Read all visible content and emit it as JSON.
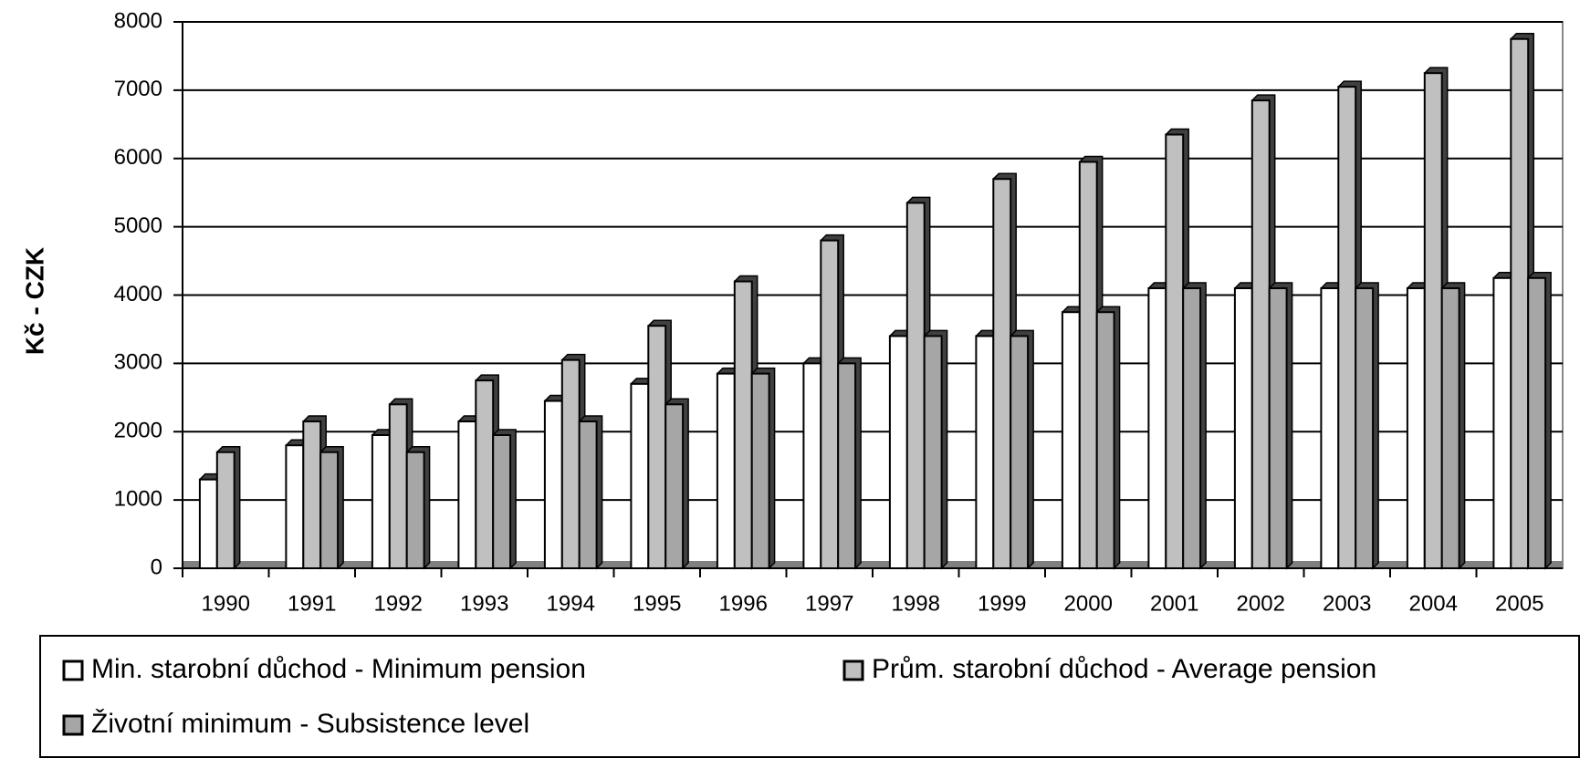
{
  "chart_data": {
    "type": "bar",
    "y_label": "Kč - CZK",
    "categories": [
      "1990",
      "1991",
      "1992",
      "1993",
      "1994",
      "1995",
      "1996",
      "1997",
      "1998",
      "1999",
      "2000",
      "2001",
      "2002",
      "2003",
      "2004",
      "2005"
    ],
    "series": [
      {
        "name": "Min. starobní důchod - Minimum pension",
        "color": "#ffffff",
        "values": [
          1300,
          1800,
          1950,
          2150,
          2450,
          2700,
          2850,
          3000,
          3400,
          3400,
          3750,
          4100,
          4100,
          4100,
          4100,
          4250
        ]
      },
      {
        "name": "Prům. starobní důchod - Average pension",
        "color": "#c0c0c0",
        "values": [
          1700,
          2150,
          2400,
          2750,
          3050,
          3550,
          4200,
          4800,
          5350,
          5700,
          5950,
          6350,
          6850,
          7050,
          7250,
          7750
        ]
      },
      {
        "name": "Životní minimum - Subsistence level",
        "color": "#a6a6a6",
        "values": [
          null,
          1700,
          1700,
          1950,
          2150,
          2400,
          2850,
          3000,
          3400,
          3400,
          3750,
          4100,
          4100,
          4100,
          4100,
          4250
        ]
      }
    ],
    "ylim": [
      0,
      8000
    ],
    "yticks": [
      0,
      1000,
      2000,
      3000,
      4000,
      5000,
      6000,
      7000,
      8000
    ],
    "grid": true
  }
}
